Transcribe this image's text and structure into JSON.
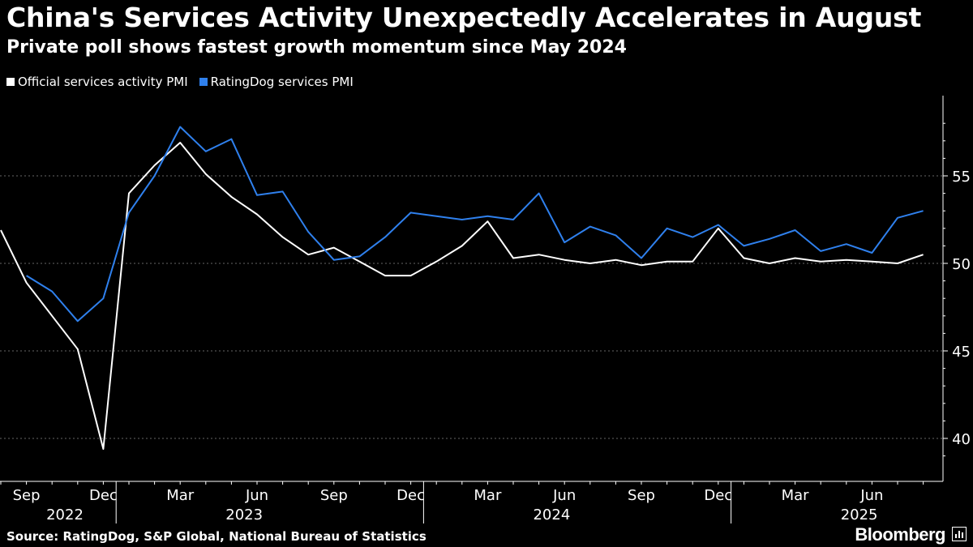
{
  "title": "China's Services Activity Unexpectedly Accelerates in August",
  "subtitle": "Private poll shows fastest growth momentum since May 2024",
  "source": "Source: RatingDog, S&P Global, National Bureau of Statistics",
  "brand": "Bloomberg",
  "colors": {
    "official": "#ffffff",
    "ratingdog": "#2f80ed",
    "grid": "#666666",
    "background": "#000000"
  },
  "chart_data": {
    "type": "line",
    "x_start": "2022-08",
    "ylim": [
      38,
      59
    ],
    "yticks": [
      40,
      45,
      50,
      55
    ],
    "grid": "dashed horizontal",
    "legend_position": "top-left",
    "month_ticks": [
      {
        "label": "Sep",
        "month_index": 1
      },
      {
        "label": "Dec",
        "month_index": 4
      },
      {
        "label": "Mar",
        "month_index": 7
      },
      {
        "label": "Jun",
        "month_index": 10
      },
      {
        "label": "Sep",
        "month_index": 13
      },
      {
        "label": "Dec",
        "month_index": 16
      },
      {
        "label": "Mar",
        "month_index": 19
      },
      {
        "label": "Jun",
        "month_index": 22
      },
      {
        "label": "Sep",
        "month_index": 25
      },
      {
        "label": "Dec",
        "month_index": 28
      },
      {
        "label": "Mar",
        "month_index": 31
      },
      {
        "label": "Jun",
        "month_index": 34
      }
    ],
    "year_labels": [
      {
        "label": "2022",
        "center_index": 2.5
      },
      {
        "label": "2023",
        "center_index": 9.5
      },
      {
        "label": "2024",
        "center_index": 21.5
      },
      {
        "label": "2025",
        "center_index": 33.5
      }
    ],
    "year_separators": [
      4.5,
      16.5,
      28.5
    ],
    "series": [
      {
        "name": "Official services activity PMI",
        "color": "#ffffff",
        "values": [
          51.9,
          48.9,
          47.0,
          45.1,
          39.4,
          54.0,
          55.6,
          56.9,
          55.1,
          53.8,
          52.8,
          51.5,
          50.5,
          50.9,
          50.1,
          49.3,
          49.3,
          50.1,
          51.0,
          52.4,
          50.3,
          50.5,
          50.2,
          50.0,
          50.2,
          49.9,
          50.1,
          50.1,
          52.0,
          50.3,
          50.0,
          50.3,
          50.1,
          50.2,
          50.1,
          50.0,
          50.5
        ]
      },
      {
        "name": "RatingDog services PMI",
        "color": "#2f80ed",
        "values": [
          null,
          49.3,
          48.4,
          46.7,
          48.0,
          52.9,
          55.0,
          57.8,
          56.4,
          57.1,
          53.9,
          54.1,
          51.8,
          50.2,
          50.4,
          51.5,
          52.9,
          52.7,
          52.5,
          52.7,
          52.5,
          54.0,
          51.2,
          52.1,
          51.6,
          50.3,
          52.0,
          51.5,
          52.2,
          51.0,
          51.4,
          51.9,
          50.7,
          51.1,
          50.6,
          52.6,
          53.0
        ]
      }
    ]
  }
}
